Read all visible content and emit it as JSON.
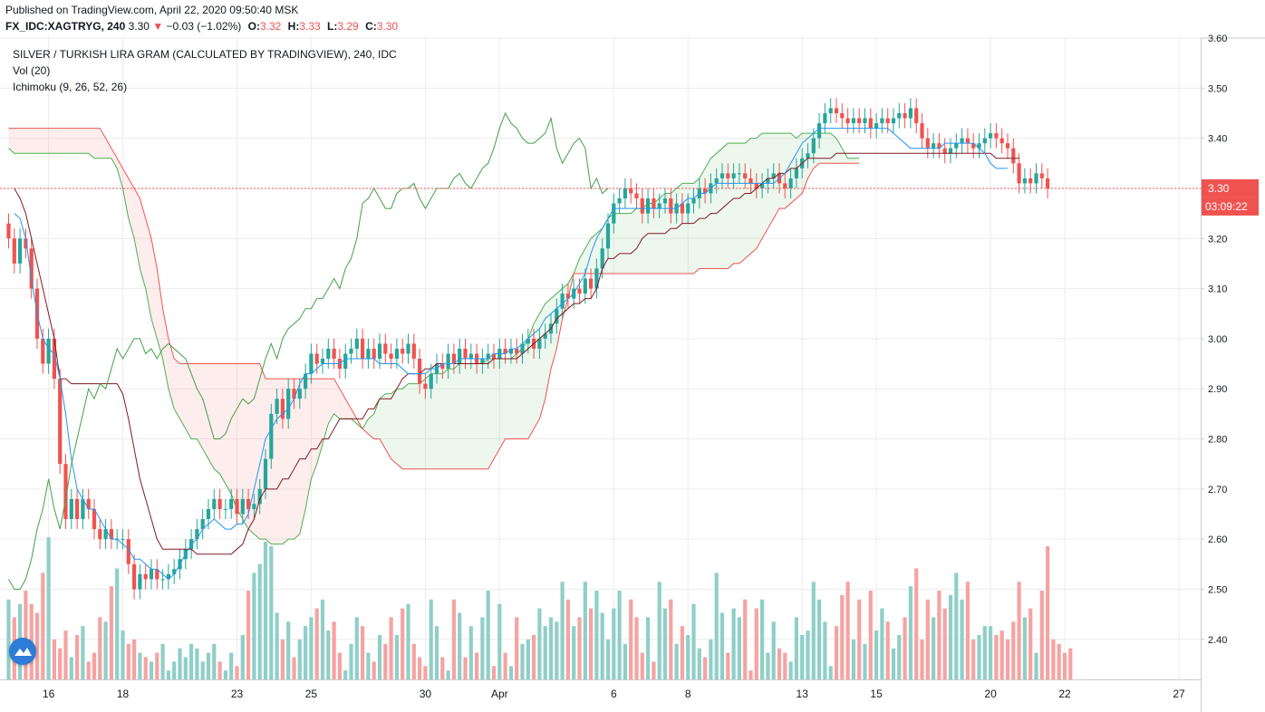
{
  "header": {
    "published": "Published on TradingView.com, April 22, 2020 09:50:40 MSK",
    "symbol": "FX_IDC:XAGTRYG, 240",
    "last": "3.30",
    "change_arrow": "▼",
    "change": "−0.03 (−1.02%)",
    "open_label": "O:",
    "open": "3.32",
    "high_label": "H:",
    "high": "3.33",
    "low_label": "L:",
    "low": "3.29",
    "close_label": "C:",
    "close": "3.30"
  },
  "legend": {
    "main": "SILVER / TURKISH LIRA GRAM (CALCULATED BY TRADINGVIEW), 240, IDC",
    "volume": "Vol (20)",
    "ichimoku": "Ichimoku (9, 26, 52, 26)"
  },
  "price_badge": {
    "price": "3.30",
    "countdown": "03:09:22"
  },
  "colors": {
    "up": "#26a69a",
    "down": "#ef5350",
    "vol_up": "#8fcfc8",
    "vol_down": "#f5a3a2",
    "conversion": "#2196f3",
    "base": "#801922",
    "lagging": "#43a047",
    "span_a": "#4caf50",
    "span_b": "#ef5350",
    "cloud_up": "rgba(76,175,80,0.10)",
    "cloud_down": "rgba(239,83,80,0.10)",
    "grid": "#ececec",
    "price_line": "#ef5350"
  },
  "chart_data": {
    "type": "candlestick",
    "ylim": [
      2.32,
      3.6
    ],
    "y_ticks": [
      "3.60",
      "3.50",
      "3.40",
      "3.30",
      "3.20",
      "3.10",
      "3.00",
      "2.90",
      "2.80",
      "2.70",
      "2.60",
      "2.50",
      "2.40"
    ],
    "x_ticks": [
      {
        "label": "16",
        "i": 7
      },
      {
        "label": "18",
        "i": 20
      },
      {
        "label": "23",
        "i": 40
      },
      {
        "label": "25",
        "i": 53
      },
      {
        "label": "30",
        "i": 73
      },
      {
        "label": "Apr",
        "i": 86
      },
      {
        "label": "6",
        "i": 106
      },
      {
        "label": "8",
        "i": 119
      },
      {
        "label": "13",
        "i": 139
      },
      {
        "label": "15",
        "i": 152
      },
      {
        "label": "20",
        "i": 172
      },
      {
        "label": "22",
        "i": 185
      },
      {
        "label": "27",
        "i": 205
      }
    ],
    "last_price": 3.3,
    "closes": [
      3.2,
      3.15,
      3.2,
      3.18,
      3.1,
      3.0,
      2.95,
      3.0,
      2.92,
      2.75,
      2.64,
      2.68,
      2.64,
      2.68,
      2.66,
      2.62,
      2.6,
      2.62,
      2.6,
      2.6,
      2.6,
      2.55,
      2.5,
      2.53,
      2.52,
      2.54,
      2.52,
      2.52,
      2.53,
      2.54,
      2.56,
      2.58,
      2.6,
      2.62,
      2.64,
      2.66,
      2.68,
      2.66,
      2.66,
      2.68,
      2.65,
      2.68,
      2.66,
      2.67,
      2.7,
      2.76,
      2.85,
      2.88,
      2.84,
      2.9,
      2.88,
      2.9,
      2.93,
      2.97,
      2.95,
      2.96,
      2.98,
      2.96,
      2.94,
      2.97,
      2.98,
      3.0,
      2.96,
      2.98,
      2.96,
      2.99,
      2.97,
      2.96,
      2.98,
      2.97,
      2.99,
      2.96,
      2.91,
      2.9,
      2.93,
      2.95,
      2.94,
      2.97,
      2.95,
      2.98,
      2.96,
      2.97,
      2.95,
      2.96,
      2.97,
      2.96,
      2.98,
      2.97,
      2.98,
      2.97,
      2.99,
      3.0,
      2.98,
      3.0,
      3.01,
      3.03,
      3.06,
      3.09,
      3.08,
      3.1,
      3.09,
      3.12,
      3.1,
      3.14,
      3.18,
      3.23,
      3.27,
      3.28,
      3.3,
      3.29,
      3.28,
      3.25,
      3.28,
      3.26,
      3.27,
      3.28,
      3.25,
      3.27,
      3.25,
      3.27,
      3.28,
      3.3,
      3.29,
      3.31,
      3.32,
      3.33,
      3.32,
      3.33,
      3.33,
      3.32,
      3.31,
      3.3,
      3.31,
      3.32,
      3.33,
      3.31,
      3.3,
      3.32,
      3.34,
      3.36,
      3.37,
      3.4,
      3.43,
      3.45,
      3.46,
      3.45,
      3.44,
      3.43,
      3.44,
      3.43,
      3.44,
      3.42,
      3.43,
      3.44,
      3.43,
      3.44,
      3.45,
      3.44,
      3.46,
      3.43,
      3.4,
      3.38,
      3.39,
      3.38,
      3.37,
      3.38,
      3.39,
      3.4,
      3.39,
      3.38,
      3.39,
      3.4,
      3.41,
      3.4,
      3.39,
      3.38,
      3.35,
      3.31,
      3.32,
      3.31,
      3.33,
      3.32,
      3.3
    ],
    "volumes": [
      18,
      14,
      17,
      20,
      17,
      15,
      24,
      32,
      9,
      7,
      11,
      5,
      10,
      12,
      4,
      6,
      14,
      13,
      21,
      25,
      11,
      8,
      9,
      6,
      5,
      4,
      6,
      8,
      2,
      4,
      7,
      5,
      8,
      7,
      4,
      6,
      8,
      4,
      2,
      6,
      3,
      10,
      20,
      24,
      26,
      31,
      30,
      15,
      9,
      13,
      5,
      9,
      12,
      14,
      16,
      18,
      11,
      13,
      6,
      2,
      8,
      14,
      12,
      6,
      4,
      10,
      8,
      14,
      10,
      16,
      17,
      8,
      5,
      3,
      18,
      12,
      5,
      2,
      18,
      15,
      5,
      12,
      6,
      14,
      20,
      3,
      17,
      6,
      3,
      14,
      8,
      9,
      10,
      16,
      12,
      14,
      13,
      22,
      18,
      12,
      14,
      22,
      16,
      20,
      15,
      9,
      16,
      20,
      8,
      18,
      14,
      6,
      14,
      4,
      22,
      16,
      18,
      8,
      12,
      10,
      17,
      7,
      5,
      9,
      24,
      15,
      6,
      16,
      14,
      18,
      2,
      16,
      18,
      6,
      13,
      7,
      6,
      4,
      14,
      10,
      11,
      22,
      18,
      13,
      3,
      12,
      19,
      22,
      9,
      18,
      8,
      20,
      11,
      16,
      13,
      7,
      10,
      14,
      21,
      25,
      9,
      18,
      14,
      20,
      16,
      19,
      24,
      18,
      22,
      9,
      10,
      12,
      12,
      10,
      11,
      9,
      13,
      22,
      14,
      16,
      6,
      20,
      30,
      9,
      8,
      6,
      7
    ],
    "conversion": {
      "start": 1,
      "values": [
        3.25,
        3.24,
        3.2,
        3.12,
        3.05,
        3.0,
        2.98,
        2.97,
        2.92,
        2.85,
        2.76,
        2.7,
        2.68,
        2.66,
        2.66,
        2.64,
        2.62,
        2.6,
        2.6,
        2.59,
        2.58,
        2.56,
        2.56,
        2.55,
        2.54,
        2.54,
        2.53,
        2.52,
        2.53,
        2.55,
        2.57,
        2.59,
        2.6,
        2.62,
        2.63,
        2.64,
        2.63,
        2.62,
        2.62,
        2.63,
        2.63,
        2.65,
        2.7,
        2.75,
        2.8,
        2.82,
        2.84,
        2.85,
        2.86,
        2.88,
        2.91,
        2.93,
        2.93,
        2.94,
        2.95,
        2.95,
        2.95,
        2.95,
        2.96,
        2.96,
        2.96,
        2.96,
        2.96,
        2.96,
        2.95,
        2.95,
        2.95,
        2.95,
        2.94,
        2.93,
        2.93,
        2.93,
        2.93,
        2.94,
        2.94,
        2.95,
        2.95,
        2.95,
        2.96,
        2.96,
        2.96,
        2.96,
        2.96,
        2.96,
        2.97,
        2.97,
        2.97,
        2.98,
        2.98,
        2.99,
        3.0,
        3.01,
        3.02,
        3.04,
        3.05,
        3.06,
        3.07,
        3.08,
        3.09,
        3.11,
        3.13,
        3.17,
        3.2,
        3.22,
        3.24,
        3.26,
        3.26,
        3.26,
        3.26,
        3.26,
        3.26,
        3.26,
        3.26,
        3.26,
        3.26,
        3.26,
        3.26,
        3.27,
        3.28,
        3.28,
        3.29,
        3.29,
        3.3,
        3.31,
        3.31,
        3.31,
        3.31,
        3.31,
        3.31,
        3.31,
        3.31,
        3.31,
        3.31,
        3.31,
        3.32,
        3.33,
        3.35,
        3.37,
        3.39,
        3.4,
        3.41,
        3.42,
        3.42,
        3.42,
        3.42,
        3.42,
        3.42,
        3.42,
        3.42,
        3.42,
        3.42,
        3.42,
        3.42,
        3.42,
        3.41,
        3.4,
        3.39,
        3.38,
        3.38,
        3.38,
        3.38,
        3.38,
        3.38,
        3.39,
        3.39,
        3.39,
        3.39,
        3.39,
        3.39,
        3.38,
        3.37,
        3.35,
        3.34,
        3.34,
        3.34
      ]
    },
    "base": {
      "start": 1,
      "values": [
        3.3,
        3.28,
        3.25,
        3.2,
        3.15,
        3.1,
        3.05,
        3.0,
        2.92,
        2.92,
        2.91,
        2.91,
        2.91,
        2.91,
        2.91,
        2.91,
        2.91,
        2.91,
        2.91,
        2.89,
        2.84,
        2.78,
        2.72,
        2.68,
        2.64,
        2.6,
        2.58,
        2.58,
        2.58,
        2.58,
        2.58,
        2.58,
        2.57,
        2.57,
        2.57,
        2.57,
        2.57,
        2.57,
        2.57,
        2.58,
        2.59,
        2.62,
        2.64,
        2.68,
        2.7,
        2.7,
        2.7,
        2.72,
        2.72,
        2.74,
        2.76,
        2.76,
        2.78,
        2.78,
        2.8,
        2.8,
        2.82,
        2.84,
        2.84,
        2.84,
        2.84,
        2.84,
        2.86,
        2.86,
        2.88,
        2.88,
        2.88,
        2.9,
        2.92,
        2.93,
        2.93,
        2.93,
        2.94,
        2.94,
        2.95,
        2.95,
        2.95,
        2.95,
        2.95,
        2.95,
        2.95,
        2.95,
        2.95,
        2.95,
        2.96,
        2.96,
        2.96,
        2.96,
        2.96,
        2.97,
        2.98,
        2.99,
        3.0,
        3.01,
        3.02,
        3.04,
        3.05,
        3.06,
        3.07,
        3.07,
        3.08,
        3.08,
        3.1,
        3.14,
        3.16,
        3.16,
        3.17,
        3.17,
        3.17,
        3.18,
        3.2,
        3.21,
        3.21,
        3.21,
        3.21,
        3.22,
        3.22,
        3.23,
        3.23,
        3.23,
        3.24,
        3.24,
        3.25,
        3.25,
        3.26,
        3.27,
        3.28,
        3.28,
        3.29,
        3.29,
        3.3,
        3.31,
        3.32,
        3.32,
        3.33,
        3.33,
        3.34,
        3.34,
        3.35,
        3.36,
        3.36,
        3.36,
        3.36,
        3.36,
        3.37,
        3.37,
        3.37,
        3.37,
        3.37,
        3.37,
        3.37,
        3.37,
        3.37,
        3.37,
        3.37,
        3.37,
        3.37,
        3.37,
        3.37,
        3.37,
        3.37,
        3.37,
        3.37,
        3.37,
        3.37,
        3.37,
        3.37,
        3.37,
        3.37,
        3.37,
        3.37,
        3.37,
        3.36,
        3.36,
        3.36,
        3.36,
        3.36
      ]
    },
    "lagging": {
      "start": 0,
      "values": [
        2.52,
        2.5,
        2.5,
        2.52,
        2.56,
        2.62,
        2.66,
        2.72,
        2.66,
        2.62,
        2.68,
        2.75,
        2.8,
        2.85,
        2.9,
        2.88,
        2.91,
        2.9,
        2.94,
        2.98,
        2.96,
        2.98,
        3.0,
        3.0,
        2.97,
        2.98,
        2.96,
        2.98,
        2.99,
        2.98,
        2.97,
        2.96,
        2.93,
        2.9,
        2.88,
        2.84,
        2.8,
        2.8,
        2.81,
        2.84,
        2.86,
        2.88,
        2.87,
        2.88,
        2.92,
        2.96,
        2.99,
        2.96,
        3.0,
        3.02,
        3.03,
        3.04,
        3.06,
        3.06,
        3.08,
        3.08,
        3.1,
        3.12,
        3.1,
        3.14,
        3.16,
        3.2,
        3.27,
        3.28,
        3.3,
        3.28,
        3.26,
        3.26,
        3.29,
        3.3,
        3.3,
        3.31,
        3.28,
        3.26,
        3.28,
        3.3,
        3.3,
        3.3,
        3.32,
        3.33,
        3.31,
        3.3,
        3.32,
        3.34,
        3.35,
        3.38,
        3.42,
        3.45,
        3.43,
        3.42,
        3.4,
        3.39,
        3.39,
        3.4,
        3.41,
        3.44,
        3.38,
        3.35,
        3.37,
        3.39,
        3.4,
        3.38,
        3.3,
        3.32,
        3.29,
        3.3
      ]
    },
    "span_a": {
      "start": 0,
      "values": [
        3.38,
        3.37,
        3.37,
        3.37,
        3.37,
        3.37,
        3.37,
        3.37,
        3.37,
        3.37,
        3.37,
        3.37,
        3.37,
        3.37,
        3.37,
        3.36,
        3.36,
        3.36,
        3.36,
        3.34,
        3.3,
        3.24,
        3.2,
        3.14,
        3.1,
        3.04,
        3.0,
        2.96,
        2.9,
        2.86,
        2.84,
        2.82,
        2.8,
        2.8,
        2.78,
        2.76,
        2.74,
        2.73,
        2.71,
        2.69,
        2.66,
        2.64,
        2.62,
        2.61,
        2.6,
        2.6,
        2.59,
        2.59,
        2.59,
        2.6,
        2.6,
        2.61,
        2.66,
        2.72,
        2.75,
        2.79,
        2.83,
        2.85,
        2.84,
        2.84,
        2.84,
        2.83,
        2.82,
        2.84,
        2.85,
        2.88,
        2.89,
        2.89,
        2.9,
        2.9,
        2.91,
        2.91,
        2.91,
        2.92,
        2.93,
        2.93,
        2.93,
        2.94,
        2.94,
        2.95,
        2.95,
        2.95,
        2.95,
        2.95,
        2.96,
        2.96,
        2.96,
        2.96,
        2.96,
        2.97,
        2.98,
        3.0,
        3.03,
        3.05,
        3.07,
        3.08,
        3.09,
        3.1,
        3.11,
        3.13,
        3.16,
        3.18,
        3.2,
        3.21,
        3.22,
        3.24,
        3.25,
        3.25,
        3.25,
        3.25,
        3.26,
        3.26,
        3.27,
        3.27,
        3.28,
        3.29,
        3.29,
        3.3,
        3.31,
        3.31,
        3.31,
        3.32,
        3.34,
        3.36,
        3.37,
        3.38,
        3.39,
        3.39,
        3.39,
        3.39,
        3.4,
        3.4,
        3.41,
        3.41,
        3.41,
        3.41,
        3.41,
        3.41,
        3.4,
        3.41,
        3.41,
        3.41,
        3.41,
        3.41,
        3.41,
        3.4,
        3.38,
        3.36,
        3.36,
        3.36
      ]
    },
    "span_b": {
      "start": 0,
      "values": [
        3.42,
        3.42,
        3.42,
        3.42,
        3.42,
        3.42,
        3.42,
        3.42,
        3.42,
        3.42,
        3.42,
        3.42,
        3.42,
        3.42,
        3.42,
        3.42,
        3.42,
        3.4,
        3.38,
        3.36,
        3.34,
        3.32,
        3.3,
        3.28,
        3.24,
        3.2,
        3.14,
        3.06,
        3.0,
        2.96,
        2.95,
        2.95,
        2.95,
        2.95,
        2.95,
        2.95,
        2.95,
        2.95,
        2.95,
        2.95,
        2.95,
        2.95,
        2.95,
        2.95,
        2.95,
        2.92,
        2.92,
        2.92,
        2.92,
        2.92,
        2.92,
        2.92,
        2.92,
        2.92,
        2.92,
        2.92,
        2.92,
        2.92,
        2.9,
        2.88,
        2.86,
        2.84,
        2.82,
        2.81,
        2.8,
        2.8,
        2.78,
        2.76,
        2.75,
        2.74,
        2.74,
        2.74,
        2.74,
        2.74,
        2.74,
        2.74,
        2.74,
        2.74,
        2.74,
        2.74,
        2.74,
        2.74,
        2.74,
        2.74,
        2.74,
        2.76,
        2.78,
        2.8,
        2.8,
        2.8,
        2.8,
        2.8,
        2.82,
        2.84,
        2.88,
        2.94,
        2.98,
        3.04,
        3.08,
        3.13,
        3.13,
        3.13,
        3.13,
        3.13,
        3.13,
        3.13,
        3.13,
        3.13,
        3.13,
        3.13,
        3.13,
        3.13,
        3.13,
        3.13,
        3.13,
        3.13,
        3.13,
        3.13,
        3.13,
        3.13,
        3.13,
        3.14,
        3.14,
        3.14,
        3.14,
        3.14,
        3.14,
        3.15,
        3.15,
        3.16,
        3.17,
        3.18,
        3.2,
        3.22,
        3.24,
        3.26,
        3.26,
        3.27,
        3.28,
        3.29,
        3.32,
        3.34,
        3.35,
        3.35,
        3.35,
        3.35,
        3.35,
        3.35,
        3.35,
        3.35
      ]
    }
  }
}
